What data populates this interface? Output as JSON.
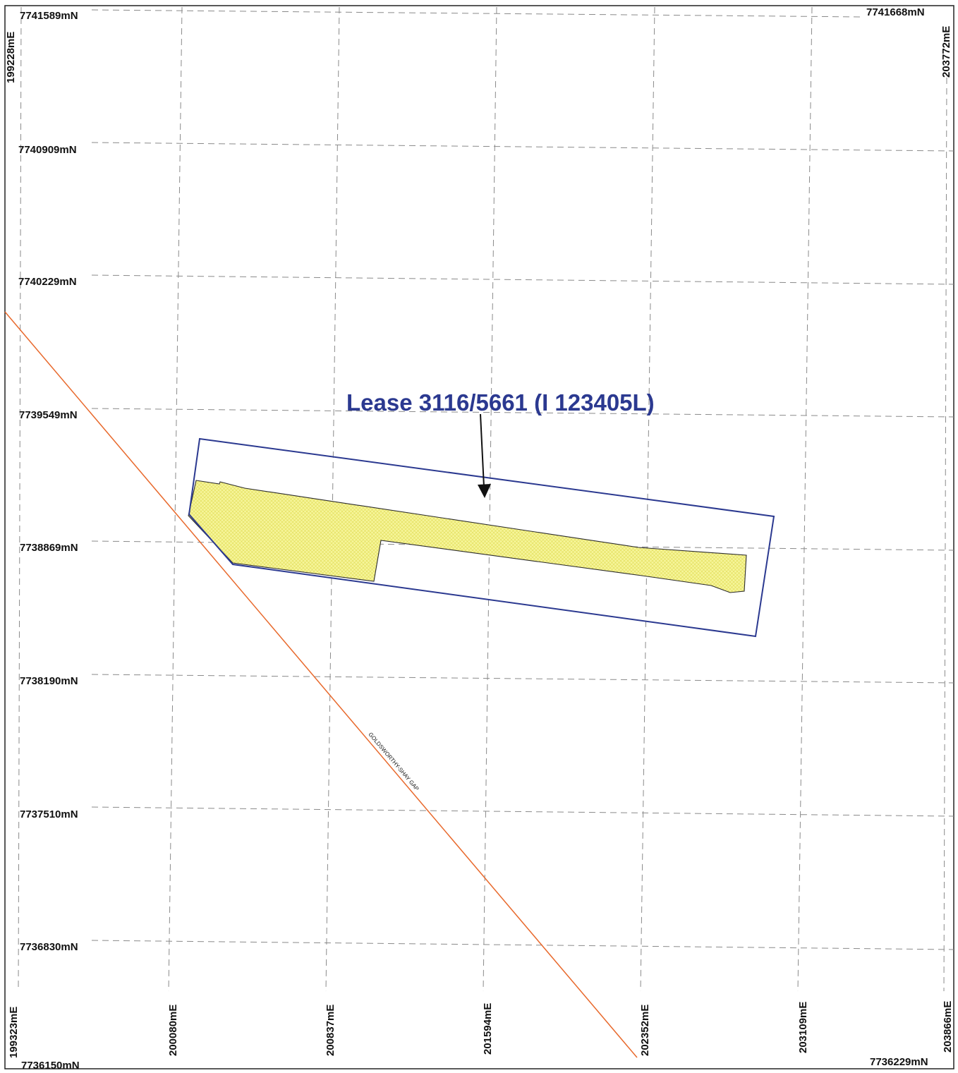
{
  "map": {
    "corner_labels": {
      "top_left_northing": "7741589mN",
      "top_right_northing": "7741668mN",
      "bottom_left_northing": "7736150mN",
      "bottom_right_northing": "7736229mN",
      "top_left_easting": "199228mE",
      "top_right_easting": "203772mE",
      "bottom_left_easting": "199323mE",
      "bottom_right_easting": "203866mE"
    },
    "northing_labels": [
      "7740909mN",
      "7740229mN",
      "7739549mN",
      "7738869mN",
      "7738190mN",
      "7737510mN",
      "7736830mN"
    ],
    "easting_labels": [
      "200080mE",
      "200837mE",
      "201594mE",
      "202352mE",
      "203109mE"
    ],
    "lease_label": "Lease 3116/5661 (I 123405L)",
    "road_label": "GOLDSWORTHY-SHAY GAP",
    "colors": {
      "lease_boundary": "#2b3990",
      "lease_fill": "#f2f27a",
      "road": "#e8692c",
      "grid": "#8a8a8a",
      "arrow": "#111111"
    }
  }
}
